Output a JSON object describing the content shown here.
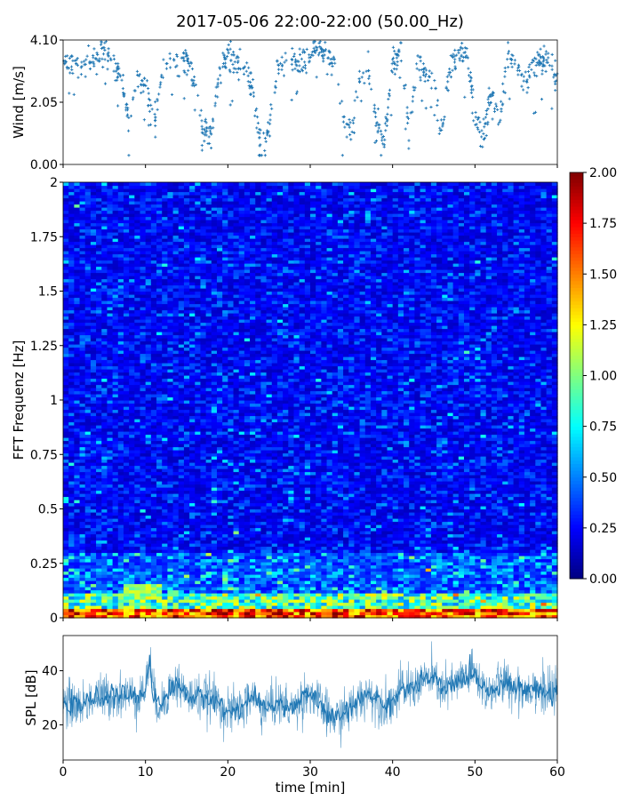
{
  "title": "2017-05-06 22:00-22:00 (50.00_Hz)",
  "chart_data": [
    {
      "type": "scatter",
      "name": "wind",
      "ylabel": "Wind [m/s]",
      "xlim": [
        0,
        60
      ],
      "ylim": [
        0,
        4.1
      ],
      "yticks": [
        "0.00",
        "2.05",
        "4.10"
      ],
      "marker": "+",
      "color": "#1f77b4",
      "trend": [
        [
          0,
          3.4
        ],
        [
          2,
          3.3
        ],
        [
          4,
          3.5
        ],
        [
          5,
          3.7
        ],
        [
          6,
          3.3
        ],
        [
          7,
          2.9
        ],
        [
          8,
          1.3
        ],
        [
          9,
          3.0
        ],
        [
          10,
          2.7
        ],
        [
          11,
          1.2
        ],
        [
          12,
          3.0
        ],
        [
          13,
          3.4
        ],
        [
          15,
          3.4
        ],
        [
          16,
          2.8
        ],
        [
          17,
          1.1
        ],
        [
          18,
          1.0
        ],
        [
          19,
          3.0
        ],
        [
          20,
          3.5
        ],
        [
          22,
          3.3
        ],
        [
          23,
          2.4
        ],
        [
          24,
          0.6
        ],
        [
          25,
          1.2
        ],
        [
          26,
          3.2
        ],
        [
          28,
          3.4
        ],
        [
          30,
          3.6
        ],
        [
          31,
          3.9
        ],
        [
          32,
          3.6
        ],
        [
          33,
          3.2
        ],
        [
          34,
          1.5
        ],
        [
          35,
          1.1
        ],
        [
          36,
          2.8
        ],
        [
          37,
          3.3
        ],
        [
          38,
          1.5
        ],
        [
          39,
          0.7
        ],
        [
          40,
          3.3
        ],
        [
          41,
          3.8
        ],
        [
          42,
          1.0
        ],
        [
          43,
          3.5
        ],
        [
          44,
          3.0
        ],
        [
          45,
          2.7
        ],
        [
          46,
          1.1
        ],
        [
          47,
          3.2
        ],
        [
          48,
          3.7
        ],
        [
          49,
          3.5
        ],
        [
          50,
          1.6
        ],
        [
          51,
          0.8
        ],
        [
          52,
          2.5
        ],
        [
          53,
          1.4
        ],
        [
          54,
          3.6
        ],
        [
          55,
          3.2
        ],
        [
          56,
          2.6
        ],
        [
          57,
          3.3
        ],
        [
          58,
          3.4
        ],
        [
          59,
          3.5
        ],
        [
          60,
          2.7
        ]
      ]
    },
    {
      "type": "heatmap",
      "name": "spectrogram",
      "ylabel": "FFT Frequenz [Hz]",
      "xlim": [
        0,
        60
      ],
      "ylim": [
        0,
        2
      ],
      "yticks": [
        "0",
        "0.25",
        "0.5",
        "0.75",
        "1",
        "1.25",
        "1.5",
        "1.75",
        "2"
      ],
      "colormap": "jet",
      "colorbar": {
        "min": 0,
        "max": 2,
        "ticks": [
          "0.00",
          "0.25",
          "0.50",
          "0.75",
          "1.00",
          "1.25",
          "1.50",
          "1.75",
          "2.00"
        ]
      },
      "typical_value": 0.25,
      "low_freq_band_value": 2.0,
      "notes": "mostly values 0.1-0.45 with high values (1.5-2.0) at frequencies below 0.05 Hz"
    },
    {
      "type": "line",
      "name": "spl",
      "ylabel": "SPL [dB]",
      "xlabel": "time [min]",
      "xlim": [
        0,
        60
      ],
      "ylim": [
        7,
        53
      ],
      "yticks": [
        "20",
        "40"
      ],
      "xticks": [
        "0",
        "10",
        "20",
        "30",
        "40",
        "50",
        "60"
      ],
      "color": "#1f77b4",
      "trend": [
        [
          0,
          28
        ],
        [
          2,
          27
        ],
        [
          4,
          30
        ],
        [
          6,
          31
        ],
        [
          8,
          31
        ],
        [
          9,
          30
        ],
        [
          10,
          33
        ],
        [
          10.5,
          45
        ],
        [
          11,
          30
        ],
        [
          12,
          27
        ],
        [
          13,
          34
        ],
        [
          14,
          35
        ],
        [
          15,
          31
        ],
        [
          16,
          30
        ],
        [
          18,
          30
        ],
        [
          19,
          28
        ],
        [
          20,
          24
        ],
        [
          21,
          26
        ],
        [
          22,
          27
        ],
        [
          23,
          31
        ],
        [
          24,
          26
        ],
        [
          25,
          27
        ],
        [
          26,
          28
        ],
        [
          27,
          27
        ],
        [
          28,
          26
        ],
        [
          29,
          30
        ],
        [
          30,
          32
        ],
        [
          31,
          28
        ],
        [
          32,
          24
        ],
        [
          33,
          22
        ],
        [
          34,
          24
        ],
        [
          35,
          26
        ],
        [
          36,
          29
        ],
        [
          37,
          32
        ],
        [
          38,
          30
        ],
        [
          39,
          27
        ],
        [
          40,
          29
        ],
        [
          41,
          33
        ],
        [
          42,
          33
        ],
        [
          43,
          35
        ],
        [
          44,
          37
        ],
        [
          45,
          37
        ],
        [
          46,
          33
        ],
        [
          47,
          34
        ],
        [
          48,
          36
        ],
        [
          49,
          38
        ],
        [
          50,
          39
        ],
        [
          51,
          34
        ],
        [
          52,
          32
        ],
        [
          53,
          36
        ],
        [
          54,
          35
        ],
        [
          55,
          34
        ],
        [
          56,
          33
        ],
        [
          57,
          34
        ],
        [
          58,
          33
        ],
        [
          59,
          31
        ],
        [
          60,
          33
        ]
      ]
    }
  ]
}
